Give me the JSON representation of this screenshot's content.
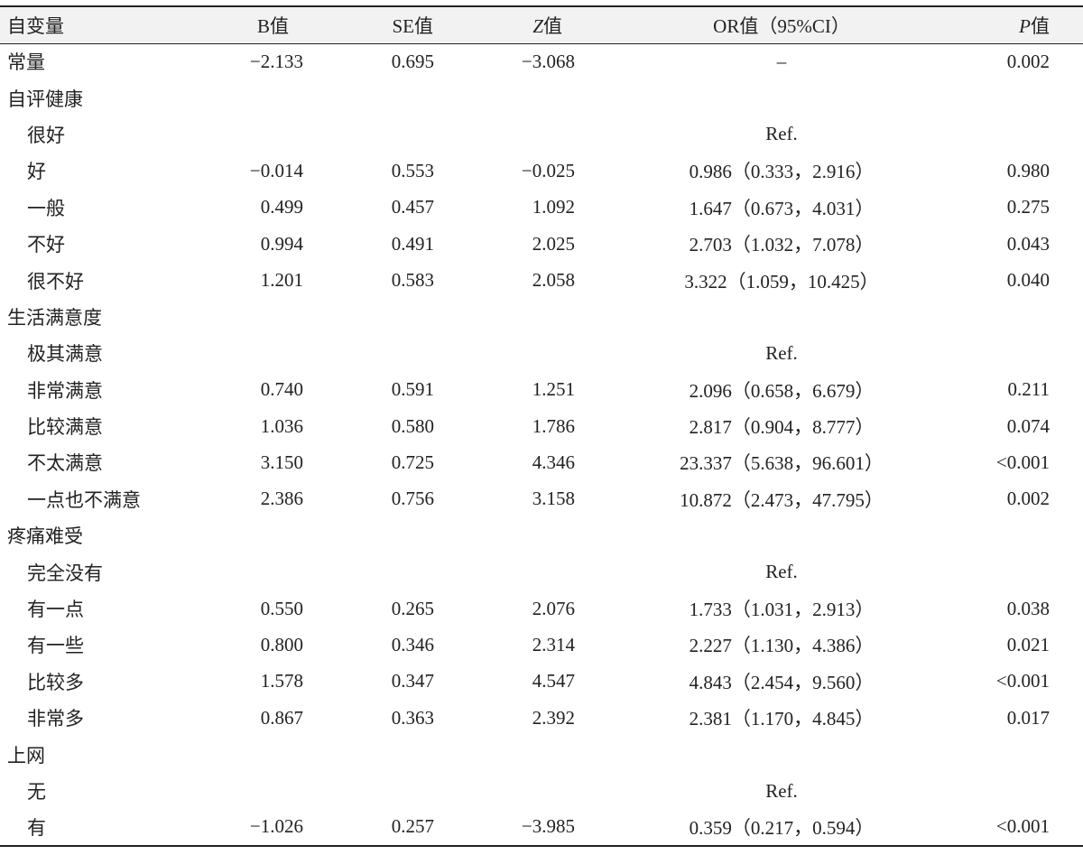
{
  "table": {
    "header": [
      "自变量",
      "B值",
      "SE值",
      "Z值",
      "OR值（95%CI）",
      "P值"
    ],
    "constant": {
      "label": "常量",
      "b": "−2.133",
      "se": "0.695",
      "z": "−3.068",
      "or": "–",
      "p": "0.002"
    },
    "groups": [
      {
        "title": "自评健康",
        "rows": [
          {
            "label": "很好",
            "or": "Ref."
          },
          {
            "label": "好",
            "b": "−0.014",
            "se": "0.553",
            "z": "−0.025",
            "or": "0.986（0.333，2.916）",
            "p": "0.980"
          },
          {
            "label": "一般",
            "b": "0.499",
            "se": "0.457",
            "z": "1.092",
            "or": "1.647（0.673，4.031）",
            "p": "0.275"
          },
          {
            "label": "不好",
            "b": "0.994",
            "se": "0.491",
            "z": "2.025",
            "or": "2.703（1.032，7.078）",
            "p": "0.043"
          },
          {
            "label": "很不好",
            "b": "1.201",
            "se": "0.583",
            "z": "2.058",
            "or": "3.322（1.059，10.425）",
            "p": "0.040"
          }
        ]
      },
      {
        "title": "生活满意度",
        "rows": [
          {
            "label": "极其满意",
            "or": "Ref."
          },
          {
            "label": "非常满意",
            "b": "0.740",
            "se": "0.591",
            "z": "1.251",
            "or": "2.096（0.658，6.679）",
            "p": "0.211"
          },
          {
            "label": "比较满意",
            "b": "1.036",
            "se": "0.580",
            "z": "1.786",
            "or": "2.817（0.904，8.777）",
            "p": "0.074"
          },
          {
            "label": "不太满意",
            "b": "3.150",
            "se": "0.725",
            "z": "4.346",
            "or": "23.337（5.638，96.601）",
            "p": "<0.001"
          },
          {
            "label": "一点也不满意",
            "b": "2.386",
            "se": "0.756",
            "z": "3.158",
            "or": "10.872（2.473，47.795）",
            "p": "0.002"
          }
        ]
      },
      {
        "title": "疼痛难受",
        "rows": [
          {
            "label": "完全没有",
            "or": "Ref."
          },
          {
            "label": "有一点",
            "b": "0.550",
            "se": "0.265",
            "z": "2.076",
            "or": "1.733（1.031，2.913）",
            "p": "0.038"
          },
          {
            "label": "有一些",
            "b": "0.800",
            "se": "0.346",
            "z": "2.314",
            "or": "2.227（1.130，4.386）",
            "p": "0.021"
          },
          {
            "label": "比较多",
            "b": "1.578",
            "se": "0.347",
            "z": "4.547",
            "or": "4.843（2.454，9.560）",
            "p": "<0.001"
          },
          {
            "label": "非常多",
            "b": "0.867",
            "se": "0.363",
            "z": "2.392",
            "or": "2.381（1.170，4.845）",
            "p": "0.017"
          }
        ]
      },
      {
        "title": "上网",
        "rows": [
          {
            "label": "无",
            "or": "Ref."
          },
          {
            "label": "有",
            "b": "−1.026",
            "se": "0.257",
            "z": "−3.985",
            "or": "0.359（0.217，0.594）",
            "p": "<0.001"
          }
        ]
      }
    ]
  }
}
